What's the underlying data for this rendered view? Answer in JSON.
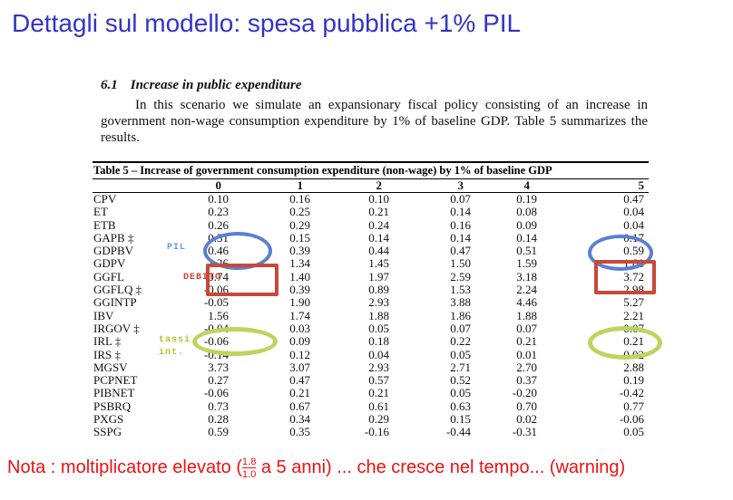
{
  "colors": {
    "title-blue": "#3434c4",
    "note-red": "#ee1111",
    "ellipse-blue": "#5b7fd0",
    "rect-red": "#c8493a",
    "ellipse-green": "#bdd45f",
    "label-blue": "#6f96e0",
    "label-red": "#cc4433",
    "label-green": "#b3c432"
  },
  "slide": {
    "title": "Dettagli sul modello: spesa pubblica +1% PIL"
  },
  "paper": {
    "section_number": "6.1",
    "section_title": "Increase in public expenditure",
    "paragraph": "In this scenario we simulate an expansionary fiscal policy consisting of an increase in government non-wage consumption expenditure by 1% of baseline GDP. Table 5 summarizes the results.",
    "table": {
      "caption": "Table 5 – Increase of government consumption expenditure (non-wage) by 1% of baseline GDP",
      "columns": [
        "0",
        "1",
        "2",
        "3",
        "4",
        "5"
      ],
      "rows": [
        {
          "label": "CPV",
          "values": [
            "0.10",
            "0.16",
            "0.10",
            "0.07",
            "0.19",
            "0.47"
          ]
        },
        {
          "label": "ET",
          "values": [
            "0.23",
            "0.25",
            "0.21",
            "0.14",
            "0.08",
            "0.04"
          ]
        },
        {
          "label": "ETB",
          "values": [
            "0.26",
            "0.29",
            "0.24",
            "0.16",
            "0.09",
            "0.04"
          ]
        },
        {
          "label": "GAPB ‡",
          "values": [
            "0.31",
            "0.15",
            "0.14",
            "0.14",
            "0.14",
            "0.17"
          ]
        },
        {
          "label": "GDPBV",
          "values": [
            "0.46",
            "0.39",
            "0.44",
            "0.47",
            "0.51",
            "0.59"
          ]
        },
        {
          "label": "GDPV",
          "values": [
            "1.26",
            "1.34",
            "1.45",
            "1.50",
            "1.59",
            "1.80"
          ]
        },
        {
          "label": "GGFL",
          "values": [
            "0.74",
            "1.40",
            "1.97",
            "2.59",
            "3.18",
            "3.72"
          ]
        },
        {
          "label": "GGFLQ ‡",
          "values": [
            "-0.06",
            "0.39",
            "0.89",
            "1.53",
            "2.24",
            "2.98"
          ]
        },
        {
          "label": "GGINTP",
          "values": [
            "-0.05",
            "1.90",
            "2.93",
            "3.88",
            "4.46",
            "5.27"
          ]
        },
        {
          "label": "IBV",
          "values": [
            "1.56",
            "1.74",
            "1.88",
            "1.86",
            "1.88",
            "2.21"
          ]
        },
        {
          "label": "IRGOV ‡",
          "values": [
            "-0.04",
            "0.03",
            "0.05",
            "0.07",
            "0.07",
            "0.07"
          ]
        },
        {
          "label": "IRL ‡",
          "values": [
            "-0.06",
            "0.09",
            "0.18",
            "0.22",
            "0.21",
            "0.21"
          ]
        },
        {
          "label": "IRS ‡",
          "values": [
            "-0.14",
            "0.12",
            "0.04",
            "0.05",
            "0.01",
            "0.02"
          ]
        },
        {
          "label": "MGSV",
          "values": [
            "3.73",
            "3.07",
            "2.93",
            "2.71",
            "2.70",
            "2.88"
          ]
        },
        {
          "label": "PCPNET",
          "values": [
            "0.27",
            "0.47",
            "0.57",
            "0.52",
            "0.37",
            "0.19"
          ]
        },
        {
          "label": "PIBNET",
          "values": [
            "-0.06",
            "0.21",
            "0.21",
            "0.05",
            "-0.20",
            "-0.42"
          ]
        },
        {
          "label": "PSBRQ",
          "values": [
            "0.73",
            "0.67",
            "0.61",
            "0.63",
            "0.70",
            "0.77"
          ]
        },
        {
          "label": "PXGS",
          "values": [
            "0.28",
            "0.34",
            "0.29",
            "0.15",
            "0.02",
            "-0.06"
          ]
        },
        {
          "label": "SSPG",
          "values": [
            "0.59",
            "0.35",
            "-0.16",
            "-0.44",
            "-0.31",
            "0.05"
          ]
        }
      ]
    }
  },
  "annotations": {
    "pil_label": "PIL",
    "debito_label": "DEBITO",
    "tassi_label_line1": "tassi",
    "tassi_label_line2": "int."
  },
  "note": {
    "part1": "Nota : moltiplicatore elevato (",
    "fraction_numerator": "1.8",
    "fraction_denominator": "1.0",
    "part2": " a 5 anni) ... che cresce nel tempo... (warning)"
  }
}
